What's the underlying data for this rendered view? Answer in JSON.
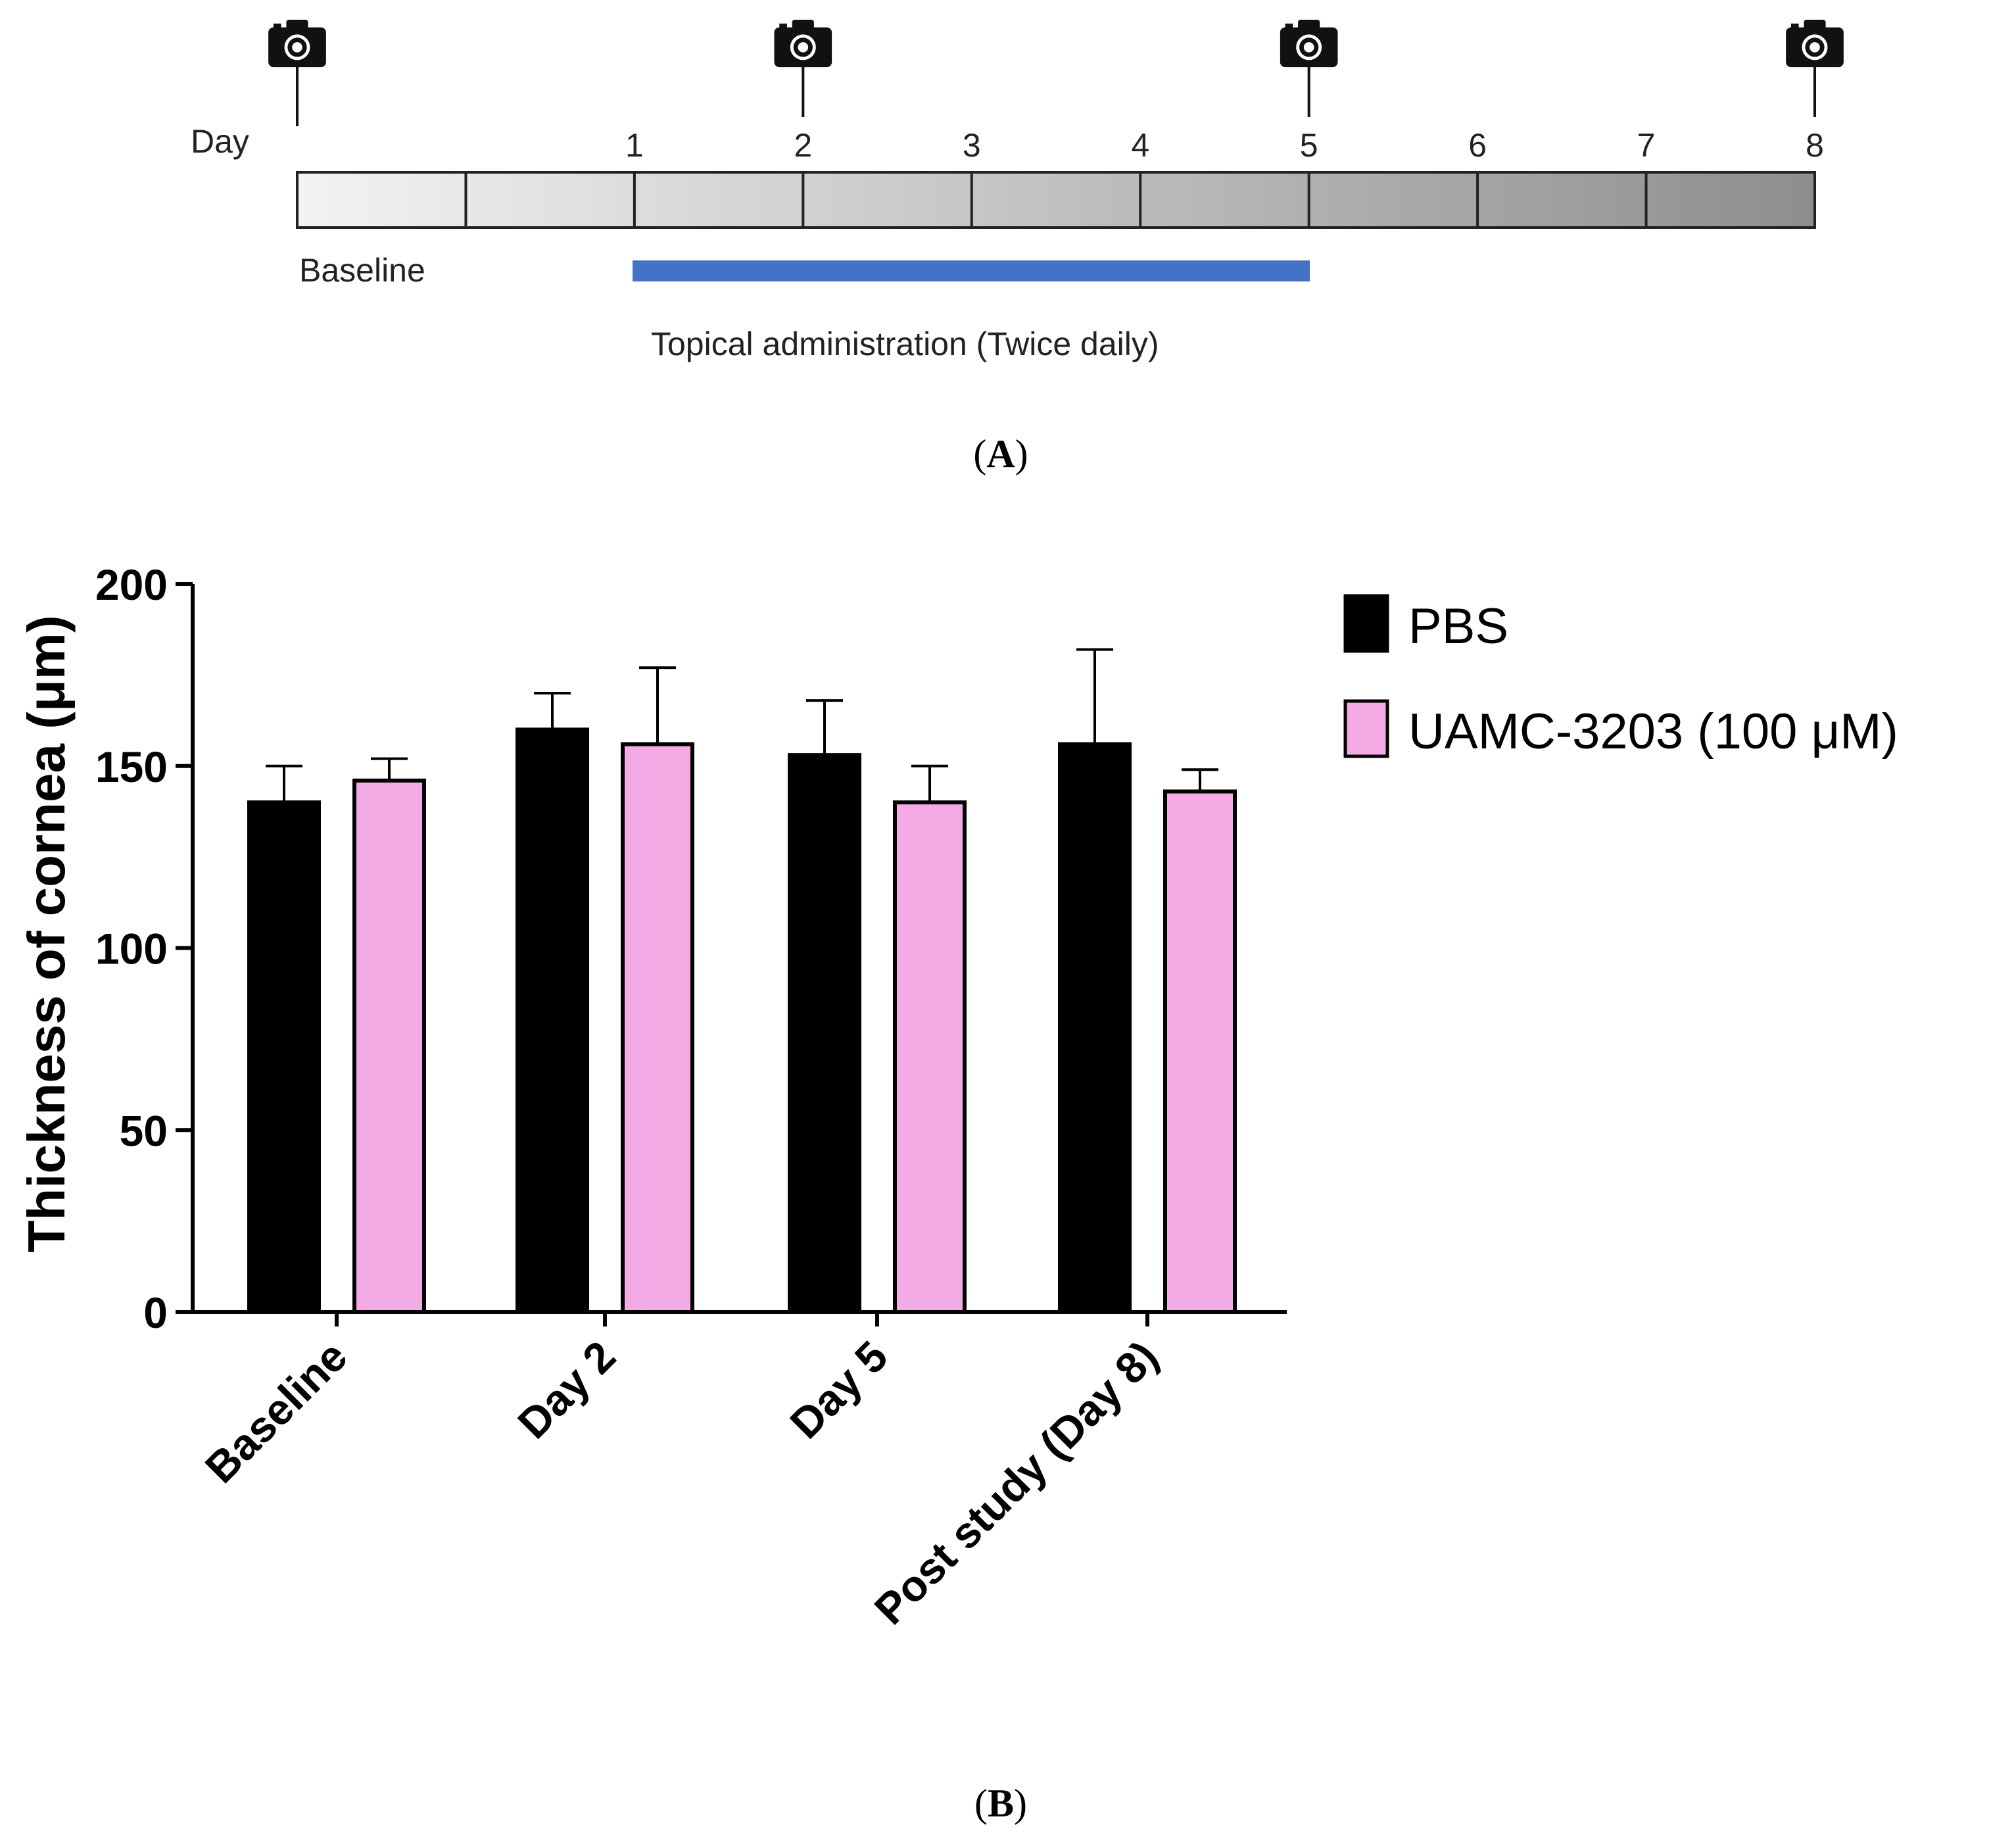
{
  "panel_a": {
    "day_label": "Day",
    "day_numbers": [
      "1",
      "2",
      "3",
      "4",
      "5",
      "6",
      "7",
      "8"
    ],
    "baseline_label": "Baseline",
    "treatment_label": "Topical administration (Twice daily)",
    "treatment_bar_color": "#4472c4",
    "camera_days": [
      "Baseline",
      "2",
      "5",
      "8"
    ],
    "camera_icon": "camera-icon",
    "caption": "A"
  },
  "chart_data": {
    "type": "bar",
    "title": "",
    "xlabel": "",
    "ylabel": "Thickness of cornea (μm)",
    "ylim": [
      0,
      200
    ],
    "yticks": [
      "0",
      "50",
      "100",
      "150",
      "200"
    ],
    "categories": [
      "Baseline",
      "Day 2",
      "Day 5",
      "Post study (Day 8)"
    ],
    "series": [
      {
        "name": "PBS",
        "color": "#000000",
        "values": [
          140,
          160,
          153,
          156
        ],
        "errors": [
          10,
          10,
          15,
          26
        ]
      },
      {
        "name": "UAMC-3203 (100 μM)",
        "color": "#f4aae4",
        "values": [
          146,
          156,
          140,
          143
        ],
        "errors": [
          6,
          21,
          10,
          6
        ]
      }
    ],
    "legend_position": "top-right",
    "caption": "B"
  }
}
